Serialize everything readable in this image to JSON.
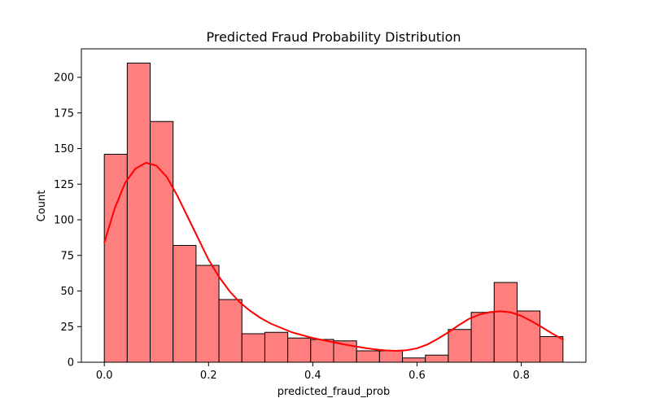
{
  "chart_data": {
    "type": "bar",
    "title": "Predicted Fraud Probability Distribution",
    "xlabel": "predicted_fraud_prob",
    "ylabel": "Count",
    "xlim": [
      -0.044,
      0.924
    ],
    "ylim": [
      0,
      220
    ],
    "xticks": [
      0.0,
      0.2,
      0.4,
      0.6,
      0.8
    ],
    "xtick_labels": [
      "0.0",
      "0.2",
      "0.4",
      "0.6",
      "0.8"
    ],
    "yticks": [
      0,
      25,
      50,
      75,
      100,
      125,
      150,
      175,
      200
    ],
    "ytick_labels": [
      "0",
      "25",
      "50",
      "75",
      "100",
      "125",
      "150",
      "175",
      "200"
    ],
    "bin_edges": [
      0.0,
      0.044,
      0.088,
      0.132,
      0.176,
      0.22,
      0.264,
      0.308,
      0.352,
      0.396,
      0.44,
      0.484,
      0.528,
      0.572,
      0.616,
      0.66,
      0.704,
      0.748,
      0.792,
      0.836,
      0.88
    ],
    "values": [
      146,
      210,
      169,
      82,
      68,
      44,
      20,
      21,
      17,
      16,
      15,
      8,
      8,
      3,
      5,
      23,
      35,
      56,
      36,
      18
    ],
    "bar_color": "#ff7f7f",
    "edge_color": "#000000",
    "kde": {
      "color": "#ff0000",
      "x": [
        0.0,
        0.02,
        0.04,
        0.06,
        0.08,
        0.1,
        0.12,
        0.14,
        0.16,
        0.18,
        0.2,
        0.22,
        0.24,
        0.26,
        0.28,
        0.3,
        0.32,
        0.34,
        0.36,
        0.38,
        0.4,
        0.42,
        0.44,
        0.46,
        0.48,
        0.5,
        0.52,
        0.54,
        0.56,
        0.58,
        0.6,
        0.62,
        0.64,
        0.66,
        0.68,
        0.7,
        0.72,
        0.74,
        0.76,
        0.78,
        0.8,
        0.82,
        0.84,
        0.86,
        0.88
      ],
      "y": [
        84,
        108,
        126,
        136,
        140,
        138,
        130,
        117,
        102,
        87,
        72,
        60,
        50,
        42,
        36,
        31,
        27,
        24,
        21,
        19,
        17,
        15.5,
        14,
        12.5,
        11.2,
        10,
        9,
        8.3,
        8,
        8.4,
        9.8,
        12.5,
        16.5,
        21,
        26,
        30.5,
        33.5,
        35.2,
        35.8,
        35,
        32.5,
        28.8,
        24.5,
        20,
        16
      ]
    }
  }
}
